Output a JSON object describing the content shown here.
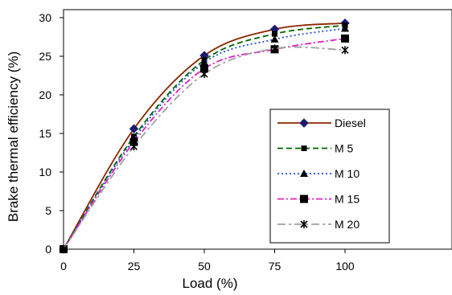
{
  "chart_data": {
    "type": "line",
    "xlabel": "Load (%)",
    "ylabel": "Brake thermal efficiency (%)",
    "xlim": [
      0,
      110
    ],
    "ylim": [
      0,
      32
    ],
    "xticks": [
      "0",
      "25",
      "50",
      "75",
      "100"
    ],
    "yticks": [
      "0",
      "5",
      "10",
      "15",
      "20",
      "25",
      "30"
    ],
    "grid": false,
    "legend_position": "center-right",
    "x": [
      0,
      25,
      50,
      75,
      100
    ],
    "series": [
      {
        "name": "Diesel",
        "values": [
          0,
          15.6,
          25.1,
          28.5,
          29.3
        ],
        "color": "#8B2500",
        "dash": "solid",
        "marker": "diamond"
      },
      {
        "name": "M 5",
        "values": [
          0,
          14.6,
          24.5,
          27.9,
          29.0
        ],
        "color": "#006400",
        "dash": "dash",
        "marker": "square"
      },
      {
        "name": "M 10",
        "values": [
          0,
          14.3,
          24.2,
          27.2,
          28.6
        ],
        "color": "#1E50D8",
        "dash": "dot",
        "marker": "triangle"
      },
      {
        "name": "M 15",
        "values": [
          0,
          13.9,
          23.4,
          25.9,
          27.3
        ],
        "color": "#E020C0",
        "dash": "dashdot",
        "marker": "bigsquare"
      },
      {
        "name": "M 20",
        "values": [
          0,
          13.3,
          22.7,
          26.0,
          25.8
        ],
        "color": "#A0A0A0",
        "dash": "longdash",
        "marker": "star"
      }
    ]
  }
}
